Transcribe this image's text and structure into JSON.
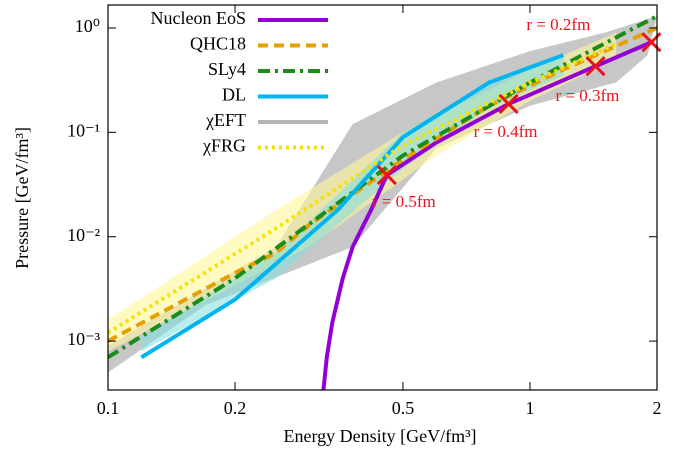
{
  "chart_data": {
    "type": "line",
    "log_x": true,
    "log_y": true,
    "xlabel": "Energy Density [GeV/fm³]",
    "ylabel": "Pressure [GeV/fm³]",
    "xlim": [
      0.1,
      2
    ],
    "ylim": [
      0.00034,
      1.66
    ],
    "xticks": [
      0.1,
      0.2,
      0.5,
      1,
      2
    ],
    "yticks": [
      {
        "value": 0.001,
        "label": "10⁻³"
      },
      {
        "value": 0.01,
        "label": "10⁻²"
      },
      {
        "value": 0.1,
        "label": "10⁻¹"
      },
      {
        "value": 1,
        "label": "10⁰"
      }
    ],
    "legend": "upper left",
    "bands": [
      {
        "of": "χEFT",
        "color": "#b4b4b4",
        "opacity": 0.75,
        "x_upper": [
          0.1,
          0.25,
          0.38,
          0.6,
          1,
          1.5,
          2
        ],
        "upper": [
          0.0009,
          0.008,
          0.12,
          0.3,
          0.6,
          0.9,
          1.3
        ],
        "x_lower": [
          0.1,
          0.17,
          0.38,
          0.6,
          1,
          1.6,
          1.9
        ],
        "lower": [
          0.0005,
          0.0022,
          0.008,
          0.07,
          0.18,
          0.3,
          0.55
        ]
      },
      {
        "of": "χFRG",
        "color": "#fff59a",
        "opacity": 0.6,
        "x_upper": [
          0.1,
          0.25,
          0.5,
          1,
          1.6
        ],
        "upper": [
          0.0016,
          0.018,
          0.1,
          0.4,
          0.9
        ],
        "x_lower": [
          0.1,
          0.3,
          0.6,
          1,
          1.6
        ],
        "lower": [
          0.0008,
          0.008,
          0.06,
          0.2,
          0.5
        ]
      },
      {
        "of": "DL",
        "color": "#7fe0e0",
        "opacity": 0.55,
        "x_upper": [
          0.12,
          0.25,
          0.5,
          0.8,
          1.2
        ],
        "upper": [
          0.0011,
          0.007,
          0.1,
          0.3,
          0.55
        ],
        "x_lower": [
          0.12,
          0.25,
          0.5,
          0.8,
          1.2
        ],
        "lower": [
          0.0008,
          0.004,
          0.045,
          0.17,
          0.35
        ]
      }
    ],
    "series": [
      {
        "name": "Nucleon EoS",
        "color": "#9400d3",
        "dash": "",
        "x": [
          0.324,
          0.33,
          0.34,
          0.36,
          0.38,
          0.42,
          0.458,
          0.6,
          0.89,
          1.43,
          1.94
        ],
        "values": [
          0.00034,
          0.0007,
          0.0015,
          0.004,
          0.008,
          0.018,
          0.039,
          0.08,
          0.187,
          0.43,
          0.73
        ]
      },
      {
        "name": "QHC18",
        "color": "#e69f00",
        "dash": "10,6",
        "x": [
          0.1,
          0.2,
          0.25,
          0.3,
          0.5,
          0.8,
          1.2,
          2
        ],
        "values": [
          0.001,
          0.0045,
          0.007,
          0.013,
          0.055,
          0.18,
          0.4,
          1.0
        ]
      },
      {
        "name": "SLy4",
        "color": "#1a8c1a",
        "dash": "12,5,3,5",
        "x": [
          0.1,
          0.2,
          0.5,
          1,
          2
        ],
        "values": [
          0.0007,
          0.004,
          0.06,
          0.3,
          1.3
        ]
      },
      {
        "name": "DL",
        "color": "#00b4ee",
        "dash": "",
        "x": [
          0.12,
          0.2,
          0.35,
          0.5,
          0.8,
          1.2
        ],
        "values": [
          0.0007,
          0.0025,
          0.018,
          0.09,
          0.3,
          0.55
        ]
      },
      {
        "name": "χEFT",
        "color": "#b4b4b4",
        "dash": "",
        "x": [],
        "values": []
      },
      {
        "name": "χFRG",
        "color": "#f5e200",
        "dash": "3,4",
        "x": [
          0.1,
          0.25,
          0.5,
          1,
          1.6
        ],
        "values": [
          0.0012,
          0.012,
          0.075,
          0.3,
          0.7
        ]
      }
    ],
    "markers": {
      "color": "#e8141c",
      "x": [
        0.458,
        0.89,
        1.43,
        1.94
      ],
      "values": [
        0.039,
        0.187,
        0.43,
        0.73
      ]
    },
    "annotations": [
      "r = 0.5fm",
      "r = 0.4fm",
      "r = 0.3fm",
      "r = 0.2fm"
    ]
  }
}
